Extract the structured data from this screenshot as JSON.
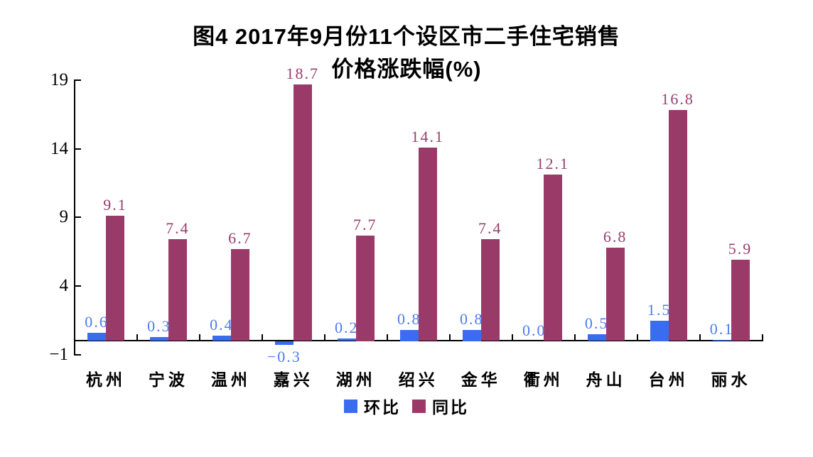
{
  "title": {
    "line1": "图4 2017年9月份11个设区市二手住宅销售",
    "line2": "价格涨跌幅(%)"
  },
  "legend": [
    {
      "name": "环比",
      "color": "#3a6cf0"
    },
    {
      "name": "同比",
      "color": "#993a68"
    }
  ],
  "chart_data": {
    "type": "bar",
    "title": "图4 2017年9月份11个设区市二手住宅销售价格涨跌幅(%)",
    "categories": [
      "杭州",
      "宁波",
      "温州",
      "嘉兴",
      "湖州",
      "绍兴",
      "金华",
      "衢州",
      "舟山",
      "台州",
      "丽水"
    ],
    "series": [
      {
        "name": "环比",
        "color": "#3a6cf0",
        "label_color": "#4b7bf2",
        "values": [
          0.6,
          0.3,
          0.4,
          -0.3,
          0.2,
          0.8,
          0.8,
          0.0,
          0.5,
          1.5,
          0.1
        ]
      },
      {
        "name": "同比",
        "color": "#993a68",
        "label_color": "#9b3d6c",
        "values": [
          9.1,
          7.4,
          6.7,
          18.7,
          7.7,
          14.1,
          7.4,
          12.1,
          6.8,
          16.8,
          5.9
        ]
      }
    ],
    "ylabel": "",
    "xlabel": "",
    "ylim": [
      -1,
      19
    ],
    "y_ticks": [
      19,
      14,
      9,
      4,
      -1
    ],
    "grid": false,
    "legend_position": "bottom",
    "value_labels_decimals": 1
  }
}
